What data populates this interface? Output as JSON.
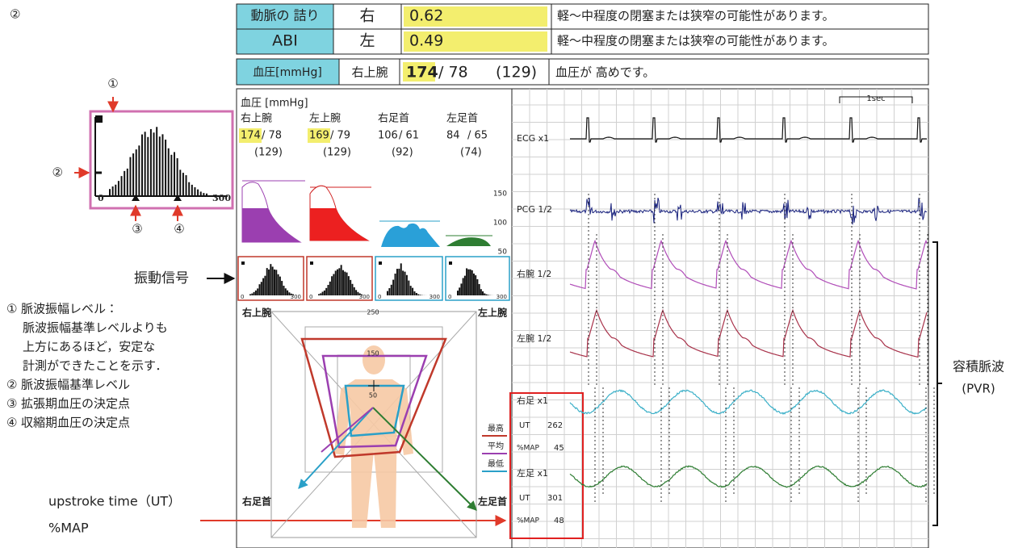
{
  "figure_label": "②",
  "inset": {
    "markers": [
      "①",
      "②",
      "③",
      "④"
    ],
    "axis": [
      0,
      300
    ]
  },
  "abi_table": {
    "rows": [
      [
        "動脈の 詰り",
        "右",
        0.62,
        "軽～中程度の閉塞または狭窄の可能性があります。"
      ],
      [
        "ABI",
        "左",
        0.49,
        "軽～中程度の閉塞または狭窄の可能性があります。"
      ]
    ]
  },
  "bp_summary": {
    "label": "血圧[mmHg]",
    "site": "右上腕",
    "systolic": 174,
    "diastolic": "/ 78",
    "mean": "(129)",
    "comment": "血圧が 高めです。"
  },
  "bp_panel": {
    "title": "血圧 [mmHg]",
    "sites": [
      {
        "name": "右上腕",
        "systolic": 174,
        "diastolic": "/ 78",
        "mean": "(129)"
      },
      {
        "name": "左上腕",
        "systolic": 169,
        "diastolic": "/ 79",
        "mean": "(129)"
      },
      {
        "name": "右足首",
        "systolic": 106,
        "diastolic": "/ 61",
        "mean": "(92)"
      },
      {
        "name": "左足首",
        "systolic": 84,
        "diastolic": "/ 65",
        "mean": "(74)"
      }
    ],
    "scale": [
      150,
      100,
      50
    ]
  },
  "oscillograms": {
    "axis": [
      0,
      300
    ]
  },
  "radar": {
    "corners": [
      "右上腕",
      "左上腕",
      "右足首",
      "左足首"
    ],
    "rings": [
      250,
      150,
      50
    ],
    "legend": [
      "最高",
      "平均",
      "最低"
    ]
  },
  "waveforms": {
    "time_scale": "1sec",
    "channels": [
      "ECG x1",
      "PCG 1/2",
      "右腕 1/2",
      "左腕 1/2"
    ],
    "legs": [
      {
        "name": "右足 x1",
        "ut_label": "UT",
        "ut": 262,
        "map_label": "%MAP",
        "map": 45
      },
      {
        "name": "左足 x1",
        "ut_label": "UT",
        "ut": 301,
        "map_label": "%MAP",
        "map": 48
      }
    ]
  },
  "annotations": {
    "vibration": "振動信号",
    "items": [
      {
        "marker": "①",
        "lines": [
          "脈波振幅レベル：",
          "脈波振幅基準レベルよりも",
          "上方にあるほど，安定な",
          "計測ができたことを示す．"
        ]
      },
      {
        "marker": "②",
        "lines": [
          "脈波振幅基準レベル"
        ]
      },
      {
        "marker": "③",
        "lines": [
          "拡張期血圧の決定点"
        ]
      },
      {
        "marker": "④",
        "lines": [
          "収縮期血圧の決定点"
        ]
      }
    ],
    "pvr": [
      "容積脈波",
      "(PVR)"
    ],
    "ut": [
      "upstroke time（UT）",
      "%MAP"
    ]
  }
}
